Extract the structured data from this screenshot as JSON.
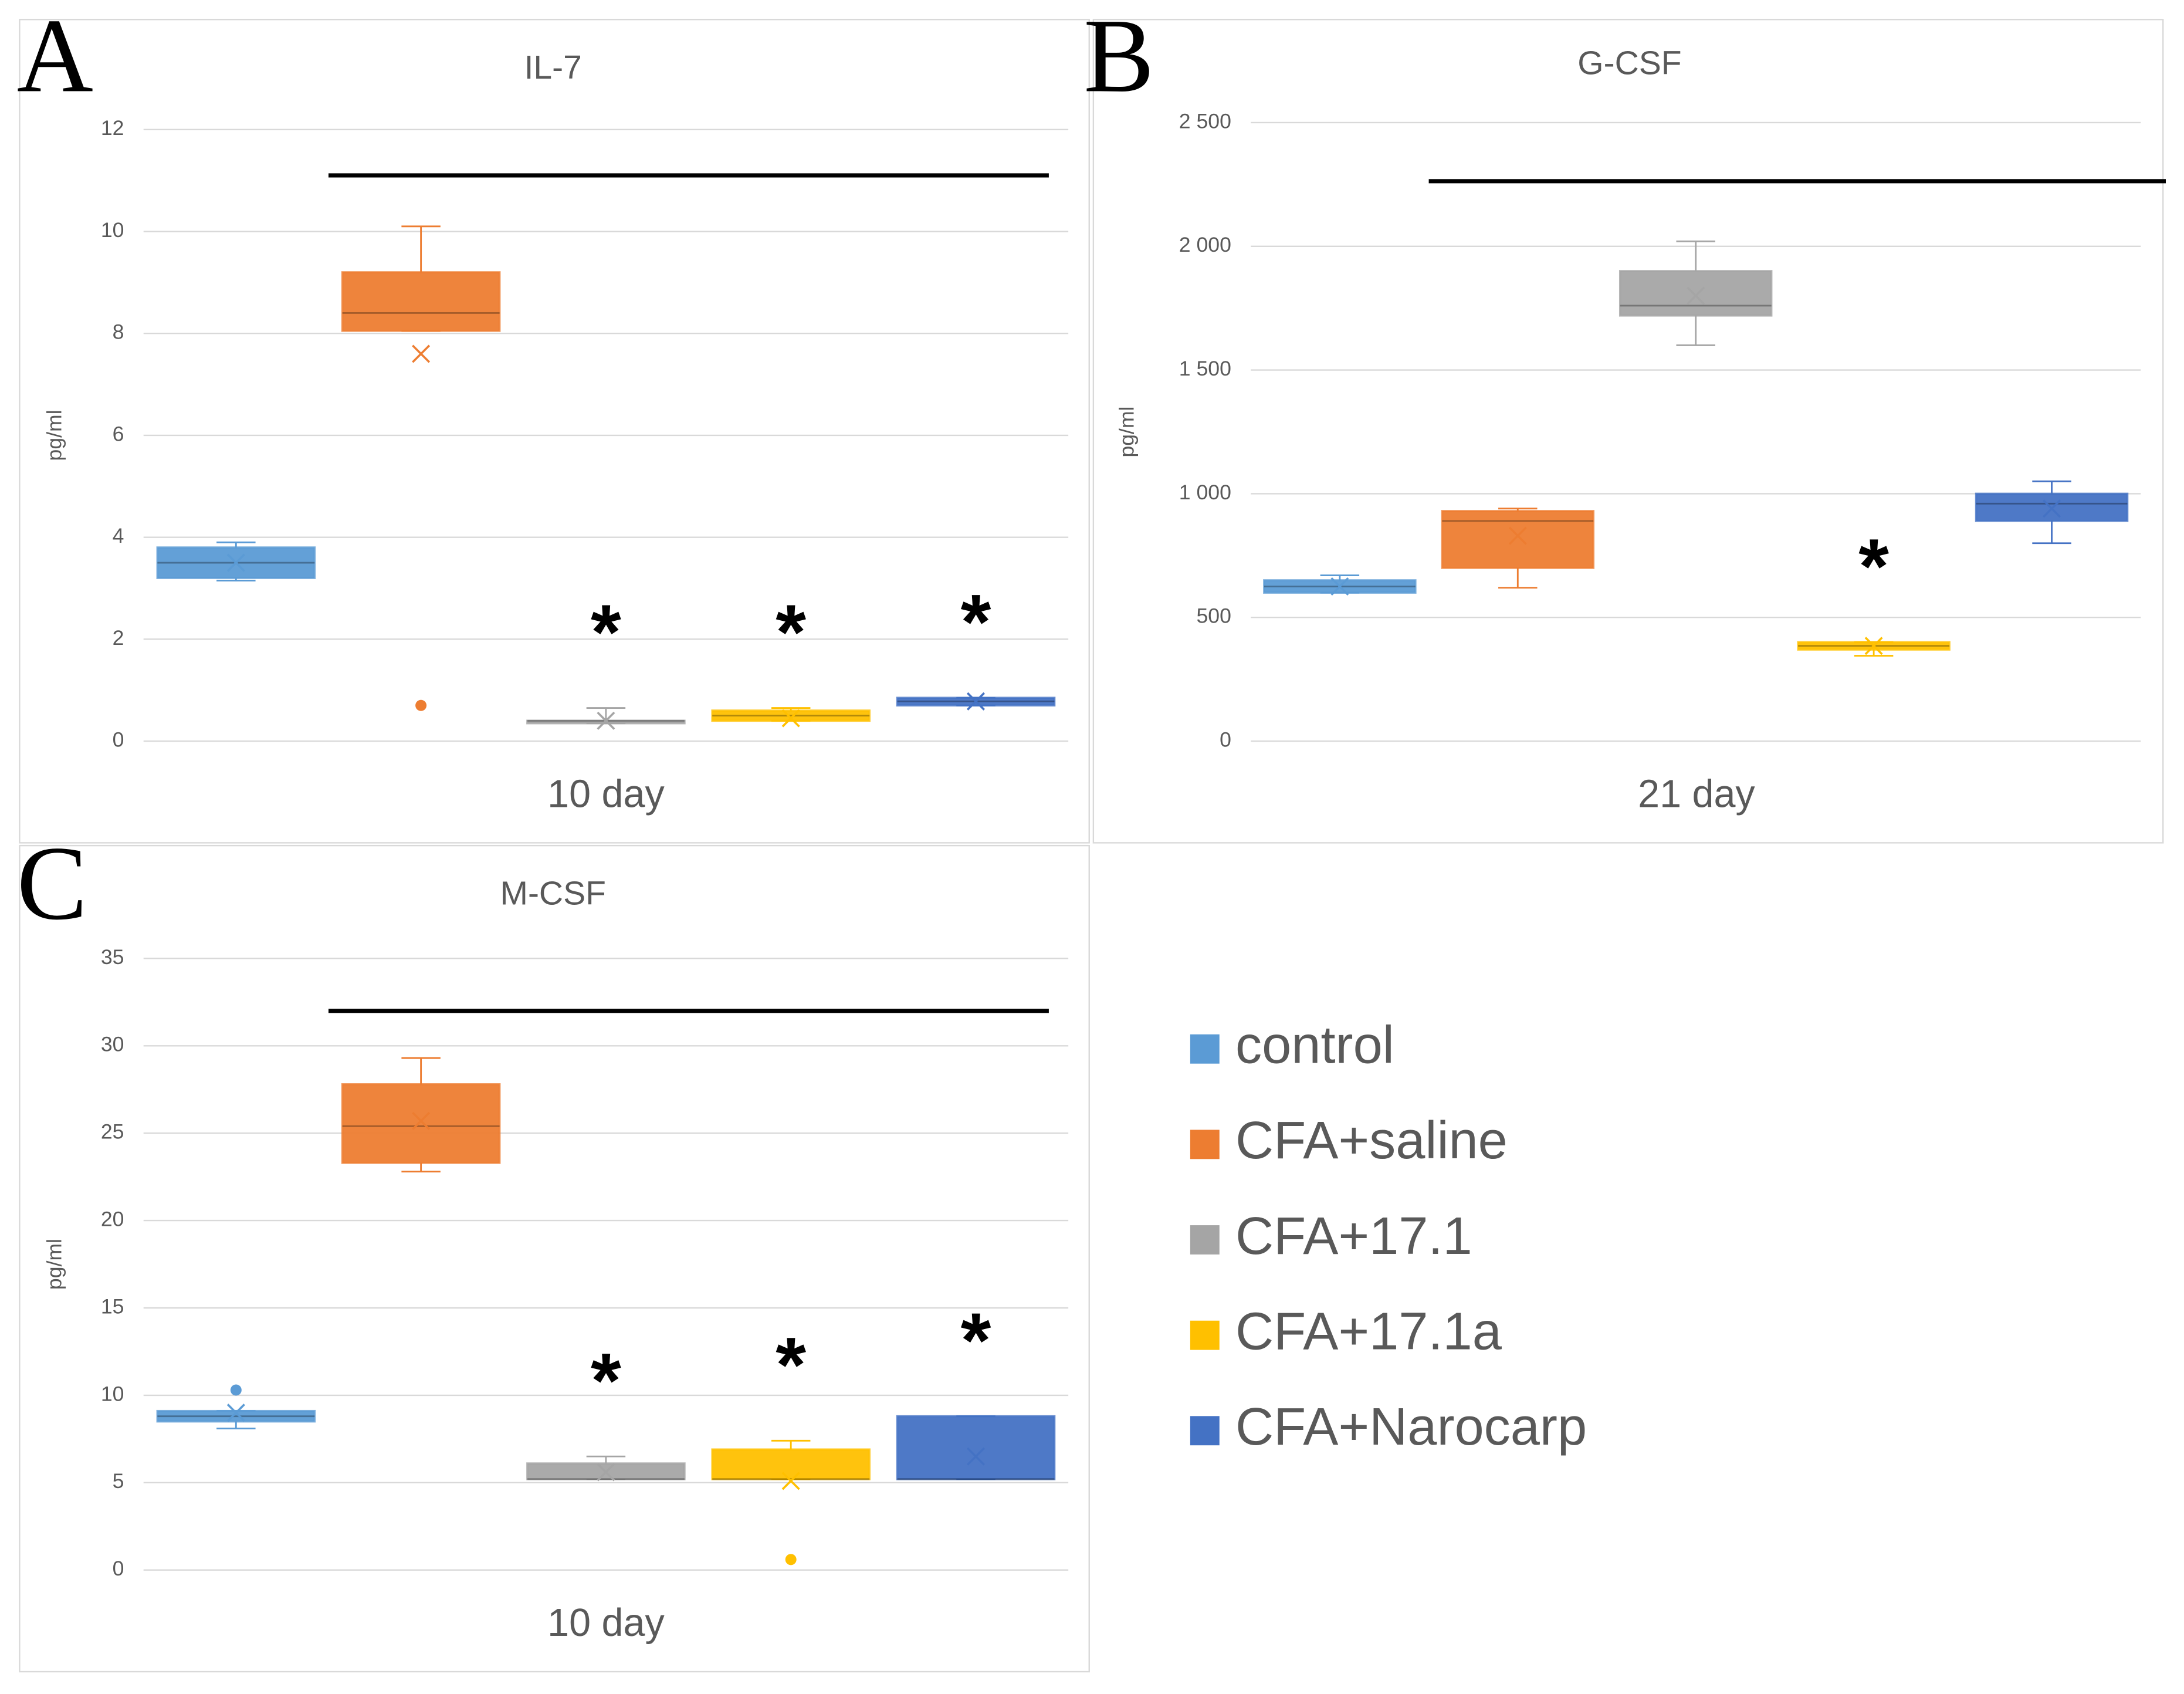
{
  "chart_data": [
    {
      "type": "box",
      "panel": "A",
      "title": "IL-7",
      "xlabel": "10 day",
      "ylabel": "pg/ml",
      "ylim": [
        0,
        12
      ],
      "yticks": [
        0,
        2,
        4,
        6,
        8,
        10,
        12
      ],
      "grid": true,
      "significance_line": 11.1,
      "series": [
        {
          "color": "#5b9bd5",
          "min": 3.15,
          "q1": 3.2,
          "median": 3.5,
          "q3": 3.8,
          "max": 3.9,
          "mean": 3.5,
          "outliers": []
        },
        {
          "color": "#ed7d31",
          "min": 8.05,
          "q1": 8.05,
          "median": 8.4,
          "q3": 9.2,
          "max": 10.1,
          "mean": 7.6,
          "outliers": [
            0.7
          ]
        },
        {
          "color": "#a5a5a5",
          "min": 0.35,
          "q1": 0.35,
          "median": 0.4,
          "q3": 0.4,
          "max": 0.65,
          "mean": 0.4,
          "outliers": [],
          "label": "*"
        },
        {
          "color": "#ffc000",
          "min": 0.4,
          "q1": 0.4,
          "median": 0.5,
          "q3": 0.6,
          "max": 0.65,
          "mean": 0.45,
          "outliers": [],
          "label": "*"
        },
        {
          "color": "#4472c4",
          "min": 0.7,
          "q1": 0.7,
          "median": 0.78,
          "q3": 0.85,
          "max": 0.85,
          "mean": 0.78,
          "outliers": [],
          "label": "*"
        }
      ]
    },
    {
      "type": "box",
      "panel": "B",
      "title": "G-CSF",
      "xlabel": "21 day",
      "ylabel": "pg/ml",
      "ylim": [
        0,
        2500
      ],
      "yticks": [
        0,
        500,
        {
          "value": 1000,
          "label": "1 000"
        },
        {
          "value": 1500,
          "label": "1 500"
        },
        {
          "value": 2000,
          "label": "2 000"
        },
        {
          "value": 2500,
          "label": "2 500"
        }
      ],
      "grid": true,
      "significance_line": 2263,
      "series": [
        {
          "color": "#5b9bd5",
          "min": 600,
          "q1": 600,
          "median": 625,
          "q3": 650,
          "max": 670,
          "mean": 625,
          "outliers": []
        },
        {
          "color": "#ed7d31",
          "min": 620,
          "q1": 700,
          "median": 890,
          "q3": 930,
          "max": 940,
          "mean": 830,
          "outliers": []
        },
        {
          "color": "#a5a5a5",
          "min": 1600,
          "q1": 1720,
          "median": 1760,
          "q3": 1900,
          "max": 2020,
          "mean": 1800,
          "outliers": []
        },
        {
          "color": "#ffc000",
          "min": 345,
          "q1": 370,
          "median": 385,
          "q3": 400,
          "max": 400,
          "mean": 385,
          "outliers": [],
          "label": "*"
        },
        {
          "color": "#4472c4",
          "min": 800,
          "q1": 890,
          "median": 960,
          "q3": 1000,
          "max": 1050,
          "mean": 940,
          "outliers": []
        }
      ]
    },
    {
      "type": "box",
      "panel": "C",
      "title": "M-CSF",
      "xlabel": "10 day",
      "ylabel": "pg/ml",
      "ylim": [
        0,
        35
      ],
      "yticks": [
        0,
        5,
        10,
        15,
        20,
        25,
        30,
        35
      ],
      "grid": true,
      "significance_line": 32,
      "series": [
        {
          "name": "control",
          "color": "#5b9bd5",
          "min": 8.1,
          "q1": 8.5,
          "median": 8.8,
          "q3": 9.1,
          "max": 9.1,
          "mean": 9.0,
          "outliers": [
            10.3
          ]
        },
        {
          "name": "CFA+saline",
          "color": "#ed7d31",
          "min": 22.8,
          "q1": 23.3,
          "median": 25.4,
          "q3": 27.8,
          "max": 29.3,
          "mean": 25.7,
          "outliers": []
        },
        {
          "name": "CFA+17.1",
          "color": "#a5a5a5",
          "min": 5.2,
          "q1": 5.2,
          "median": 5.2,
          "q3": 6.1,
          "max": 6.5,
          "mean": 5.6,
          "outliers": [],
          "label": "*"
        },
        {
          "name": "CFA+17.1a",
          "color": "#ffc000",
          "min": 5.2,
          "q1": 5.2,
          "median": 5.2,
          "q3": 6.9,
          "max": 7.4,
          "mean": 5.1,
          "outliers": [
            0.6
          ],
          "label": "*"
        },
        {
          "name": "CFA+Narocarp",
          "color": "#4472c4",
          "min": 5.2,
          "q1": 5.2,
          "median": 5.2,
          "q3": 8.8,
          "max": 8.8,
          "mean": 6.5,
          "outliers": [],
          "label": "*"
        }
      ]
    }
  ]
}
